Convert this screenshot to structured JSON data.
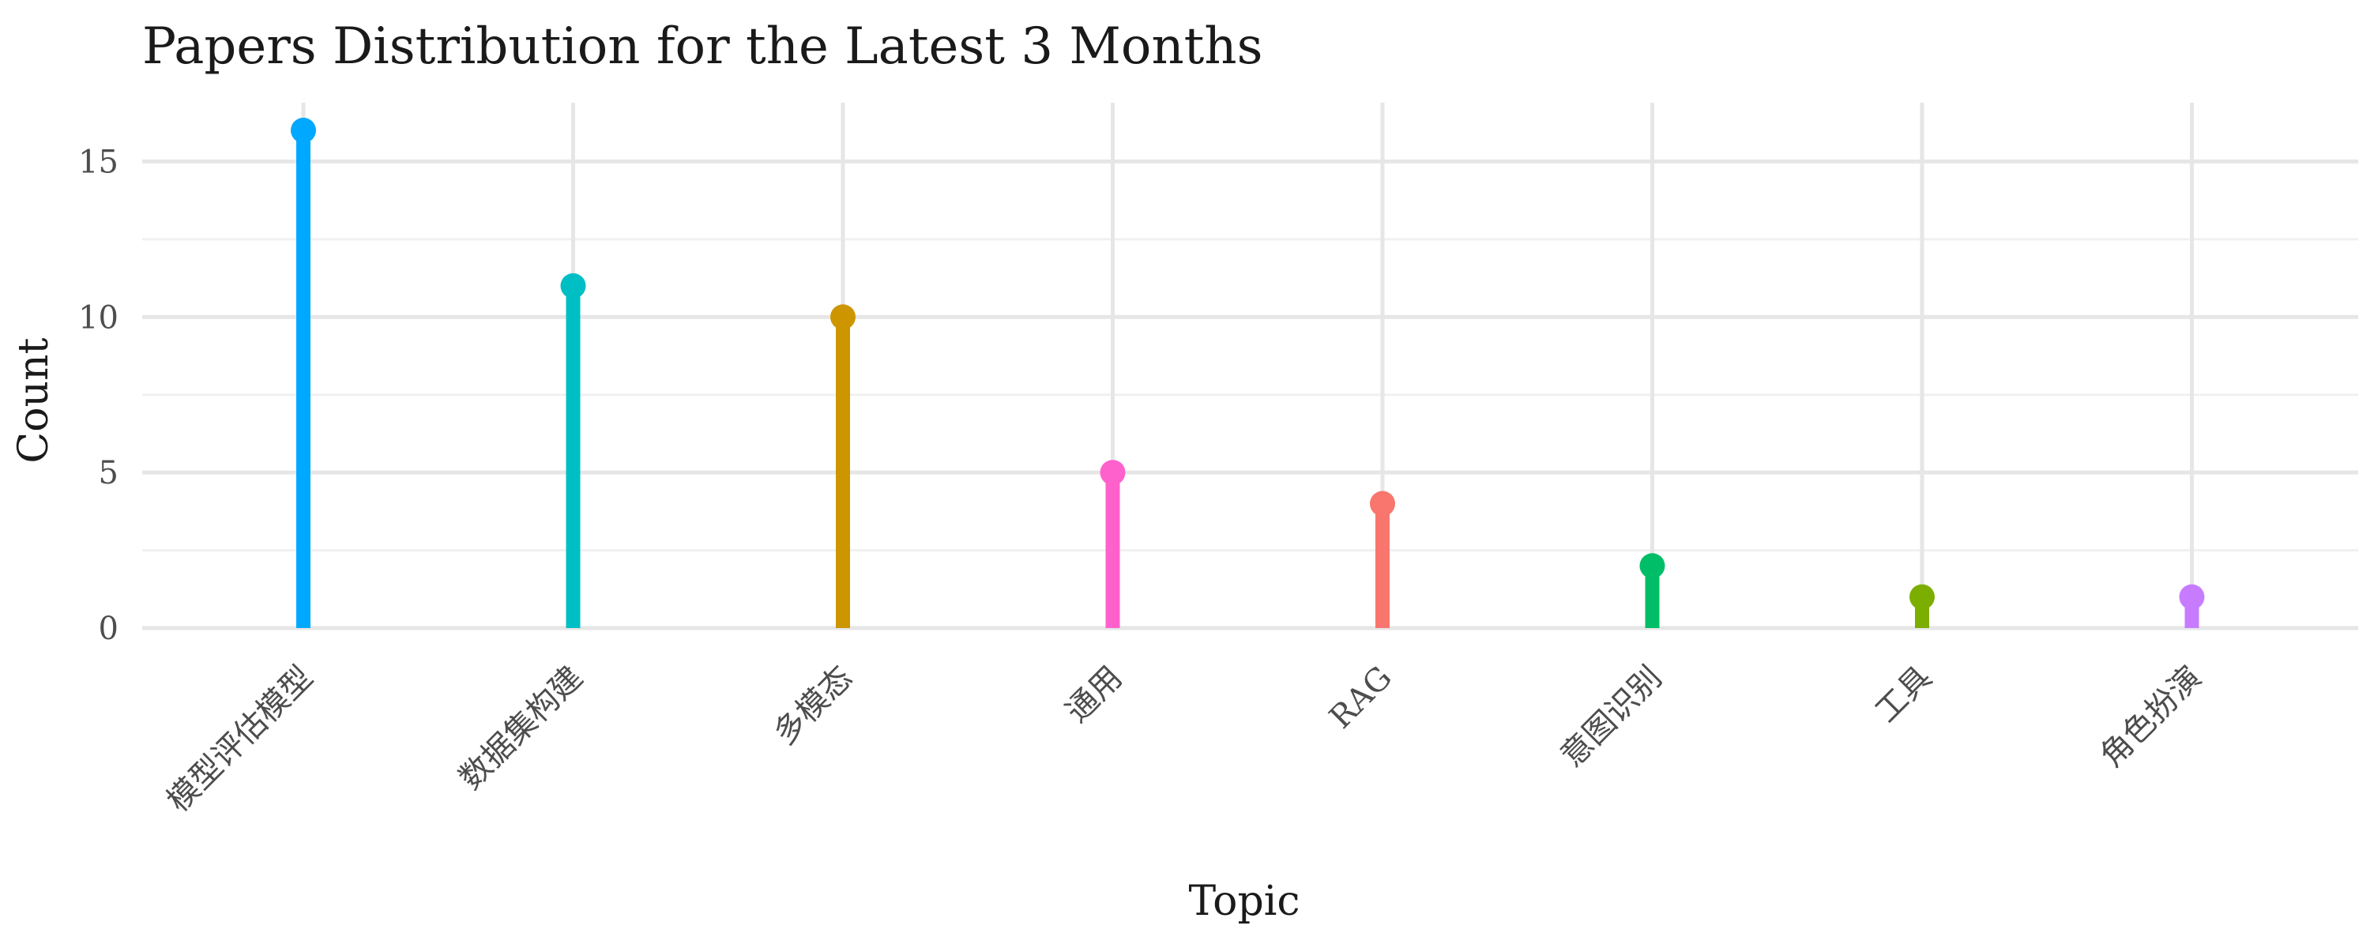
{
  "chart_data": {
    "type": "lollipop",
    "title": "Papers Distribution for the Latest 3 Months",
    "xlabel": "Topic",
    "ylabel": "Count",
    "categories": [
      "模型评估模型",
      "数据集构建",
      "多模态",
      "通用",
      "RAG",
      "意图识别",
      "工具",
      "角色扮演"
    ],
    "values": [
      16,
      11,
      10,
      5,
      4,
      2,
      1,
      1
    ],
    "colors": [
      "#00A9FF",
      "#00BFC4",
      "#CD9600",
      "#FF61CC",
      "#F8766D",
      "#00BE67",
      "#7CAE00",
      "#C77CFF"
    ],
    "y_ticks": [
      0,
      5,
      10,
      15
    ],
    "ylim": [
      0,
      16
    ],
    "grid": true,
    "legend": "none"
  }
}
